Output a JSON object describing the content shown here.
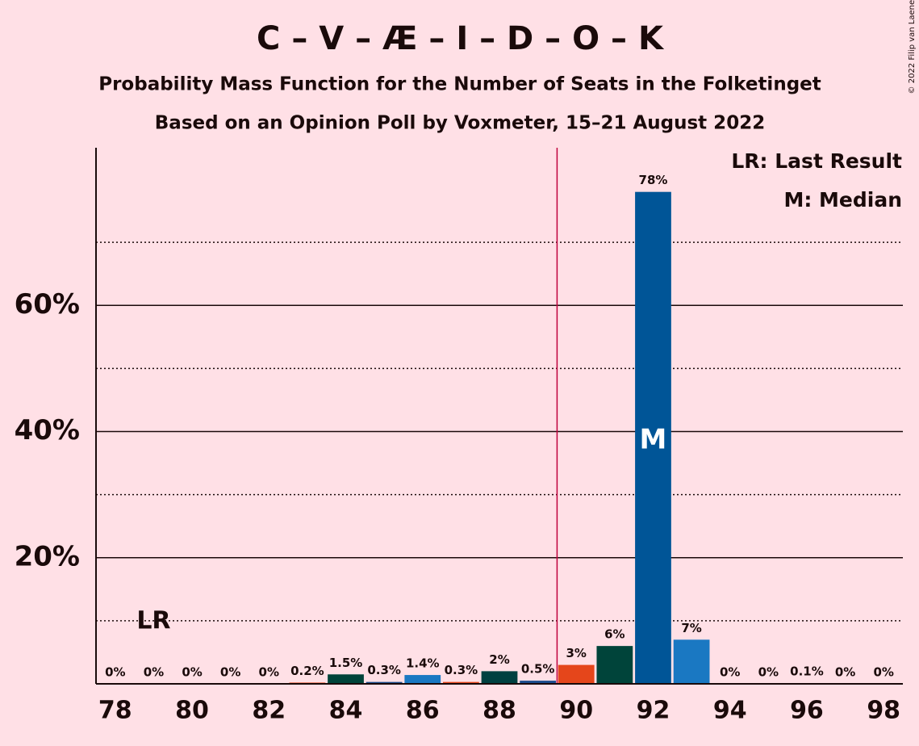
{
  "chart_data": {
    "type": "bar",
    "title": "C – V – Æ – I – D – O – K",
    "subtitle": "Probability Mass Function for the Number of Seats in the Folketinget",
    "subtitle2": "Based on an Opinion Poll by Voxmeter, 15–21 August 2022",
    "copyright": "© 2022 Filip van Laenen",
    "x": [
      78,
      79,
      80,
      81,
      82,
      83,
      84,
      85,
      86,
      87,
      88,
      89,
      90,
      91,
      92,
      93,
      94,
      95,
      96,
      97,
      98
    ],
    "values": [
      0,
      0,
      0,
      0,
      0,
      0.2,
      1.5,
      0.3,
      1.4,
      0.3,
      2,
      0.5,
      3,
      6,
      78,
      7,
      0,
      0,
      0.1,
      0,
      0
    ],
    "value_labels": [
      "0%",
      "0%",
      "0%",
      "0%",
      "0%",
      "0.2%",
      "1.5%",
      "0.3%",
      "1.4%",
      "0.3%",
      "2%",
      "0.5%",
      "3%",
      "6%",
      "78%",
      "7%",
      "0%",
      "0%",
      "0.1%",
      "0%",
      "0%"
    ],
    "colors": [
      "#1b4c8c",
      "#1b4c8c",
      "#1b4c8c",
      "#1b4c8c",
      "#1b4c8c",
      "#e5461b",
      "#00443a",
      "#1b4c8c",
      "#1a78c2",
      "#e5461b",
      "#004040",
      "#1b4c8c",
      "#e5461b",
      "#00443a",
      "#005597",
      "#1a78c2",
      "#1b4c8c",
      "#1b4c8c",
      "#1b4c8c",
      "#1b4c8c",
      "#1b4c8c"
    ],
    "xlim": [
      77.5,
      98.5
    ],
    "xticks": [
      78,
      80,
      82,
      84,
      86,
      88,
      90,
      92,
      94,
      96,
      98
    ],
    "ylim": [
      0,
      85
    ],
    "yticks": [
      {
        "value": 20,
        "label": "20%"
      },
      {
        "value": 40,
        "label": "40%"
      },
      {
        "value": 60,
        "label": "60%"
      }
    ],
    "minor_yticks": [
      10,
      30,
      50,
      70
    ],
    "grid": true,
    "majority_line": 89.5,
    "majority_color": "#c0003c",
    "last_result": {
      "x": 79,
      "label": "LR"
    },
    "median": {
      "x": 92,
      "label": "M"
    },
    "legend": [
      "LR: Last Result",
      "M: Median"
    ]
  }
}
